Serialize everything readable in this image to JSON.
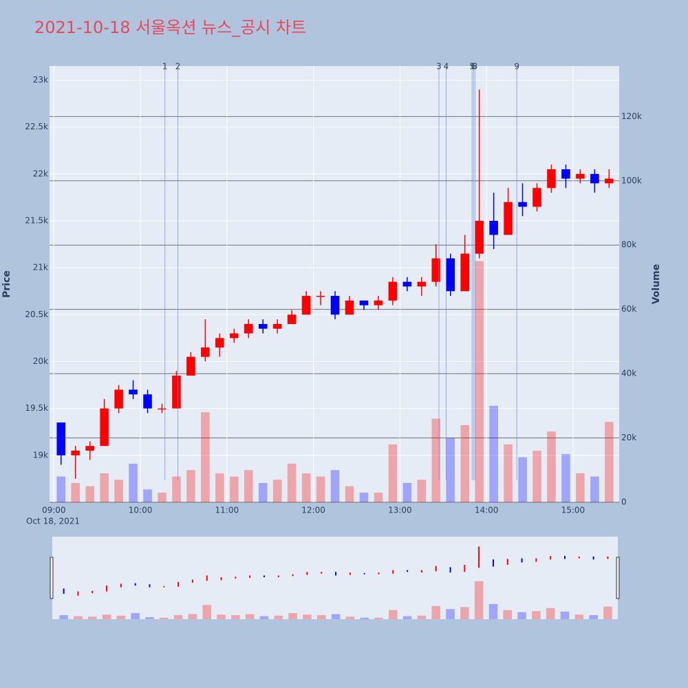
{
  "chart_data": {
    "type": "candlestick",
    "title": "2021-10-18 서울옥션 뉴스_공시 차트",
    "y_title": "Price",
    "y2_title": "Volume",
    "date_label": "Oct 18, 2021",
    "increasing_color": "#ff0000",
    "decreasing_color": "#0000ff",
    "x": [
      "09:00",
      "09:10",
      "09:20",
      "09:30",
      "09:40",
      "09:50",
      "10:00",
      "10:10",
      "10:20",
      "10:30",
      "10:40",
      "10:50",
      "11:00",
      "11:10",
      "11:20",
      "11:30",
      "11:40",
      "11:50",
      "12:00",
      "12:10",
      "12:20",
      "12:30",
      "12:40",
      "12:50",
      "13:00",
      "13:10",
      "13:20",
      "13:30",
      "13:40",
      "13:50",
      "14:00",
      "14:10",
      "14:20",
      "14:30",
      "14:40",
      "14:50",
      "15:00",
      "15:10",
      "15:20"
    ],
    "open": [
      19350,
      19000,
      19050,
      19100,
      19500,
      19700,
      19650,
      19500,
      19500,
      19850,
      20050,
      20150,
      20250,
      20300,
      20400,
      20350,
      20400,
      20500,
      20700,
      20700,
      20500,
      20650,
      20600,
      20650,
      20850,
      20800,
      20850,
      21100,
      20750,
      21150,
      21500,
      21350,
      21700,
      21650,
      21850,
      22050,
      21950,
      22000,
      21900
    ],
    "high": [
      19350,
      19100,
      19150,
      19600,
      19750,
      19800,
      19700,
      19550,
      19900,
      20100,
      20450,
      20300,
      20350,
      20450,
      20450,
      20450,
      20550,
      20750,
      20750,
      20750,
      20700,
      20650,
      20700,
      20900,
      20900,
      20900,
      21250,
      21150,
      21350,
      22900,
      21800,
      21850,
      21900,
      21900,
      22100,
      22100,
      22050,
      22050,
      22050
    ],
    "low": [
      18900,
      18750,
      18950,
      19100,
      19450,
      19600,
      19450,
      19450,
      19500,
      19850,
      20000,
      20050,
      20200,
      20250,
      20300,
      20300,
      20400,
      20500,
      20600,
      20450,
      20500,
      20550,
      20550,
      20600,
      20750,
      20700,
      20800,
      20700,
      20750,
      21100,
      21200,
      21350,
      21550,
      21600,
      21800,
      21850,
      21900,
      21800,
      21850
    ],
    "close": [
      19000,
      19050,
      19100,
      19500,
      19700,
      19650,
      19500,
      19500,
      19850,
      20050,
      20150,
      20250,
      20300,
      20400,
      20350,
      20400,
      20500,
      20700,
      20700,
      20500,
      20650,
      20600,
      20650,
      20850,
      20800,
      20850,
      21100,
      20750,
      21150,
      21500,
      21350,
      21700,
      21650,
      21850,
      22050,
      21950,
      22000,
      21900,
      21950
    ],
    "volume": [
      8000,
      6000,
      5000,
      9000,
      7000,
      12000,
      4000,
      3000,
      8000,
      10000,
      28000,
      9000,
      8000,
      10000,
      6000,
      7000,
      12000,
      9000,
      8000,
      10000,
      5000,
      3000,
      3000,
      18000,
      6000,
      7000,
      26000,
      20000,
      24000,
      75000,
      30000,
      18000,
      14000,
      16000,
      22000,
      15000,
      9000,
      8000,
      25000
    ],
    "xlim": [
      "08:57",
      "15:32"
    ],
    "xticks": [
      "09:00",
      "10:00",
      "11:00",
      "12:00",
      "13:00",
      "14:00",
      "15:00"
    ],
    "ylim": [
      18500,
      23150
    ],
    "yticks": [
      {
        "value": 19000,
        "label": "19k"
      },
      {
        "value": 19500,
        "label": "19.5k"
      },
      {
        "value": 20000,
        "label": "20k"
      },
      {
        "value": 20500,
        "label": "20.5k"
      },
      {
        "value": 21000,
        "label": "21k"
      },
      {
        "value": 21500,
        "label": "21.5k"
      },
      {
        "value": 22000,
        "label": "22k"
      },
      {
        "value": 22500,
        "label": "22.5k"
      },
      {
        "value": 23000,
        "label": "23k"
      }
    ],
    "y2lim": [
      0,
      135700
    ],
    "y2ticks": [
      0,
      {
        "value": 20000,
        "label": "20k"
      },
      {
        "value": 40000,
        "label": "40k"
      },
      {
        "value": 60000,
        "label": "60k"
      },
      {
        "value": 80000,
        "label": "80k"
      },
      {
        "value": 100000,
        "label": "100k"
      },
      {
        "value": 120000,
        "label": "120k"
      }
    ],
    "annotations": [
      {
        "x": "10:17",
        "text": "1"
      },
      {
        "x": "10:26",
        "text": "2"
      },
      {
        "x": "13:27",
        "text": "3"
      },
      {
        "x": "13:32",
        "text": "4"
      },
      {
        "x": "13:50",
        "text": "5"
      },
      {
        "x": "13:51",
        "text": "6"
      },
      {
        "x": "13:52",
        "text": "8"
      },
      {
        "x": "14:21",
        "text": "9"
      }
    ]
  }
}
